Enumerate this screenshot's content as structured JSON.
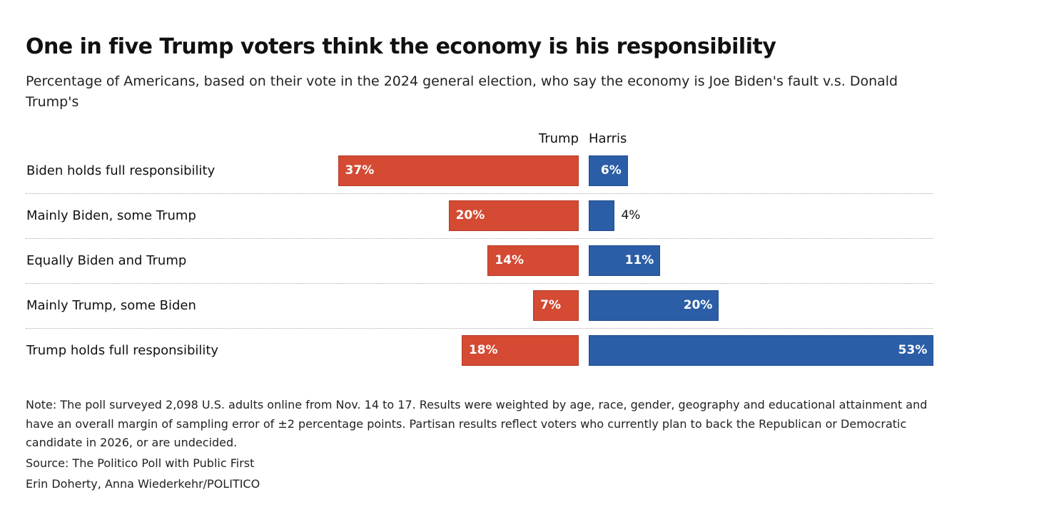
{
  "title": "One in five Trump voters think the economy is his responsibility",
  "subtitle": "Percentage of Americans, based on their vote in the 2024 general election, who say the economy is Joe Biden's fault v.s. Donald Trump's",
  "note": "Note: The poll surveyed 2,098 U.S. adults online from Nov. 14 to 17. Results were weighted by age, race, gender, geography and educational attainment and have an overall margin of sampling error of ±2 percentage points. Partisan results reflect voters who currently plan to back the Republican or Democratic candidate in 2026, or are undecided.",
  "source": "Source: The Politico Poll with Public First",
  "credit": "Erin Doherty, Anna Wiederkehr/POLITICO",
  "colors": {
    "trump": "#d44a33",
    "harris": "#2b5ea7"
  },
  "chart_data": {
    "type": "bar",
    "orientation": "horizontal-diverging",
    "title": "One in five Trump voters think the economy is his responsibility",
    "categories": [
      "Biden holds full responsibility",
      "Mainly Biden, some Trump",
      "Equally Biden and Trump",
      "Mainly Trump, some Biden",
      "Trump holds full responsibility"
    ],
    "series": [
      {
        "name": "Trump",
        "values": [
          37,
          20,
          14,
          7,
          18
        ],
        "labels": [
          "37%",
          "20%",
          "14%",
          "7%",
          "18%"
        ]
      },
      {
        "name": "Harris",
        "values": [
          6,
          4,
          11,
          20,
          53
        ],
        "labels": [
          "6%",
          "4%",
          "11%",
          "20%",
          "53%"
        ]
      }
    ],
    "unit": "%"
  }
}
